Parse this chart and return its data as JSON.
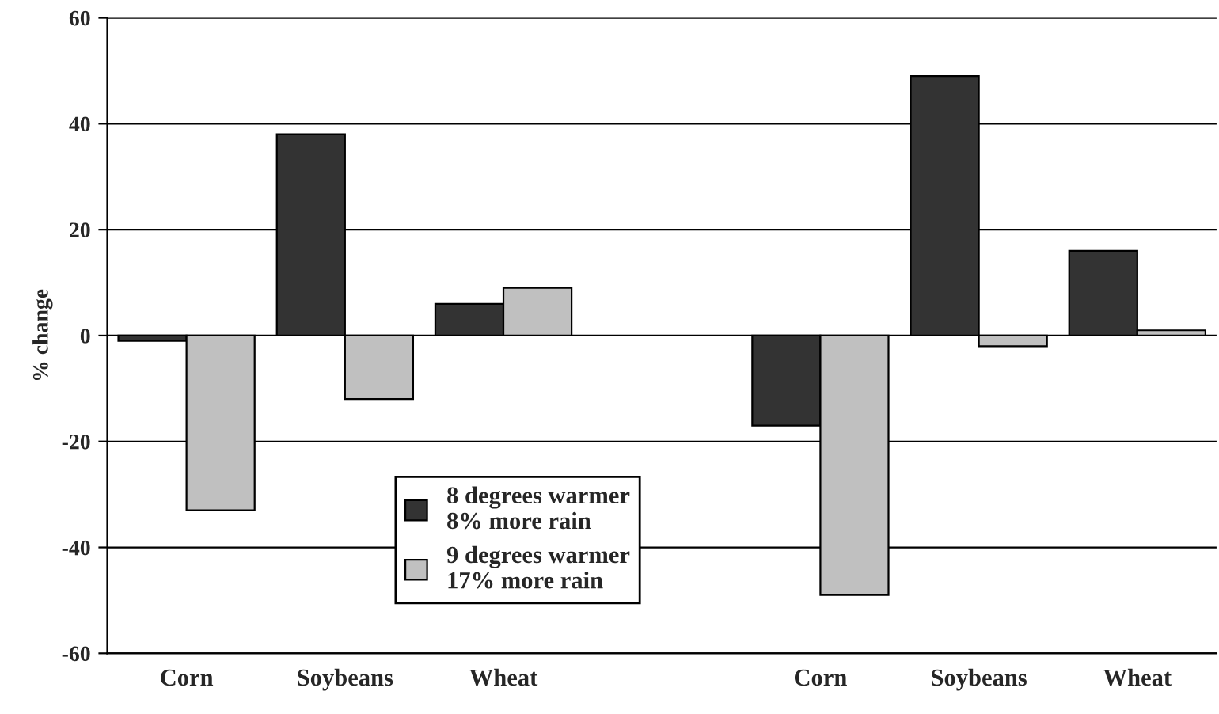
{
  "chart_data": {
    "type": "bar",
    "ylabel": "% change",
    "categories": [
      "Corn",
      "Soybeans",
      "Wheat",
      null,
      "Corn",
      "Soybeans",
      "Wheat"
    ],
    "series": [
      {
        "name": "8 degrees warmer\n8% more rain",
        "color": "#333333",
        "values": [
          -1,
          38,
          6,
          null,
          -17,
          49,
          16
        ]
      },
      {
        "name": "9 degrees warmer\n17% more rain",
        "color": "#c0c0c0",
        "values": [
          -33,
          -12,
          9,
          null,
          -49,
          -2,
          1
        ]
      }
    ],
    "ylim": [
      -60,
      60
    ],
    "yticks": [
      -60,
      -40,
      -20,
      0,
      20,
      40,
      60
    ],
    "grid": "y",
    "legend": "bottom"
  }
}
